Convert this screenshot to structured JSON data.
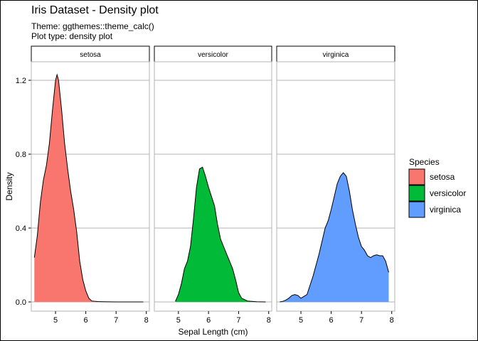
{
  "chart_data": {
    "type": "area",
    "title": "Iris Dataset - Density plot",
    "subtitle_lines": [
      "Theme: ggthemes::theme_calc()",
      "Plot type: density plot"
    ],
    "xlabel": "Sepal Length (cm)",
    "ylabel": "Density",
    "xlim": [
      4.2,
      8.1
    ],
    "ylim": [
      -0.05,
      1.3
    ],
    "x_ticks": [
      5,
      6,
      7,
      8
    ],
    "y_ticks": [
      0.0,
      0.4,
      0.8,
      1.2
    ],
    "y_tick_labels": [
      "0.0",
      "0.4",
      "0.8",
      "1.2"
    ],
    "grid": "horizontal",
    "legend": {
      "title": "Species",
      "placement": "right",
      "entries": [
        "setosa",
        "versicolor",
        "virginica"
      ]
    },
    "facets": [
      {
        "label": "setosa",
        "color": "#F8766D",
        "x": [
          4.3,
          4.4,
          4.5,
          4.6,
          4.7,
          4.8,
          4.9,
          5.0,
          5.05,
          5.1,
          5.2,
          5.3,
          5.4,
          5.5,
          5.6,
          5.7,
          5.8,
          5.9,
          6.0,
          6.1,
          6.2,
          6.4,
          6.6,
          7.0,
          7.5,
          7.9
        ],
        "y": [
          0.24,
          0.36,
          0.54,
          0.66,
          0.74,
          0.86,
          1.04,
          1.2,
          1.23,
          1.2,
          1.04,
          0.86,
          0.72,
          0.6,
          0.5,
          0.38,
          0.22,
          0.12,
          0.06,
          0.02,
          0.005,
          0.002,
          0.001,
          0.0,
          0.0,
          0.0
        ]
      },
      {
        "label": "versicolor",
        "color": "#00BA38",
        "x": [
          4.9,
          5.0,
          5.1,
          5.2,
          5.3,
          5.4,
          5.5,
          5.6,
          5.7,
          5.8,
          5.9,
          6.0,
          6.1,
          6.2,
          6.3,
          6.4,
          6.5,
          6.6,
          6.7,
          6.8,
          6.9,
          7.0,
          7.1,
          7.3,
          7.6,
          7.9
        ],
        "y": [
          0.003,
          0.04,
          0.1,
          0.18,
          0.22,
          0.3,
          0.45,
          0.62,
          0.72,
          0.73,
          0.68,
          0.62,
          0.57,
          0.52,
          0.42,
          0.34,
          0.3,
          0.26,
          0.22,
          0.18,
          0.12,
          0.05,
          0.02,
          0.005,
          0.001,
          0.0
        ]
      },
      {
        "label": "virginica",
        "color": "#619CFF",
        "x": [
          4.3,
          4.4,
          4.5,
          4.6,
          4.7,
          4.8,
          4.9,
          5.0,
          5.2,
          5.4,
          5.6,
          5.8,
          5.9,
          6.0,
          6.1,
          6.2,
          6.3,
          6.4,
          6.5,
          6.6,
          6.7,
          6.8,
          6.9,
          7.0,
          7.1,
          7.2,
          7.3,
          7.4,
          7.5,
          7.6,
          7.7,
          7.8,
          7.9
        ],
        "y": [
          0.0,
          0.003,
          0.01,
          0.02,
          0.035,
          0.04,
          0.035,
          0.02,
          0.04,
          0.14,
          0.26,
          0.4,
          0.44,
          0.5,
          0.57,
          0.64,
          0.68,
          0.7,
          0.68,
          0.6,
          0.5,
          0.42,
          0.35,
          0.3,
          0.28,
          0.25,
          0.24,
          0.25,
          0.255,
          0.25,
          0.25,
          0.22,
          0.16
        ]
      }
    ]
  }
}
